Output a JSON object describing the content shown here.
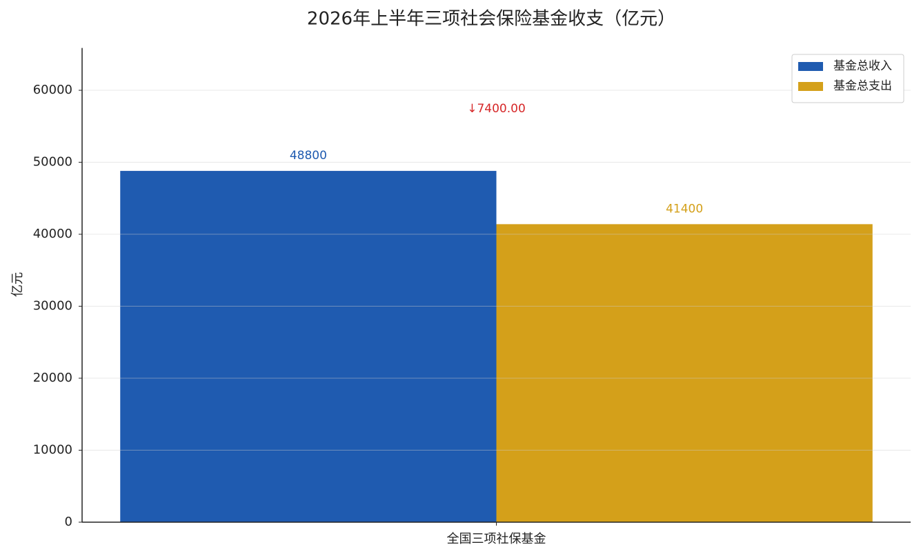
{
  "chart_data": {
    "type": "bar",
    "title": "2026年上半年三项社会保险基金收支（亿元）",
    "ylabel": "亿元",
    "categories": [
      "全国三项社保基金"
    ],
    "series": [
      {
        "name": "基金总收入",
        "color": "#1f5bb0",
        "values": [
          48800
        ]
      },
      {
        "name": "基金总支出",
        "color": "#d4a01a",
        "values": [
          41400
        ]
      }
    ],
    "annotation": "↓7400.00",
    "annotation_color": "#d62728",
    "ylim": [
      0,
      65880
    ],
    "yticks": [
      0,
      10000,
      20000,
      30000,
      40000,
      50000,
      60000
    ],
    "grid": true,
    "legend": "upper right"
  }
}
